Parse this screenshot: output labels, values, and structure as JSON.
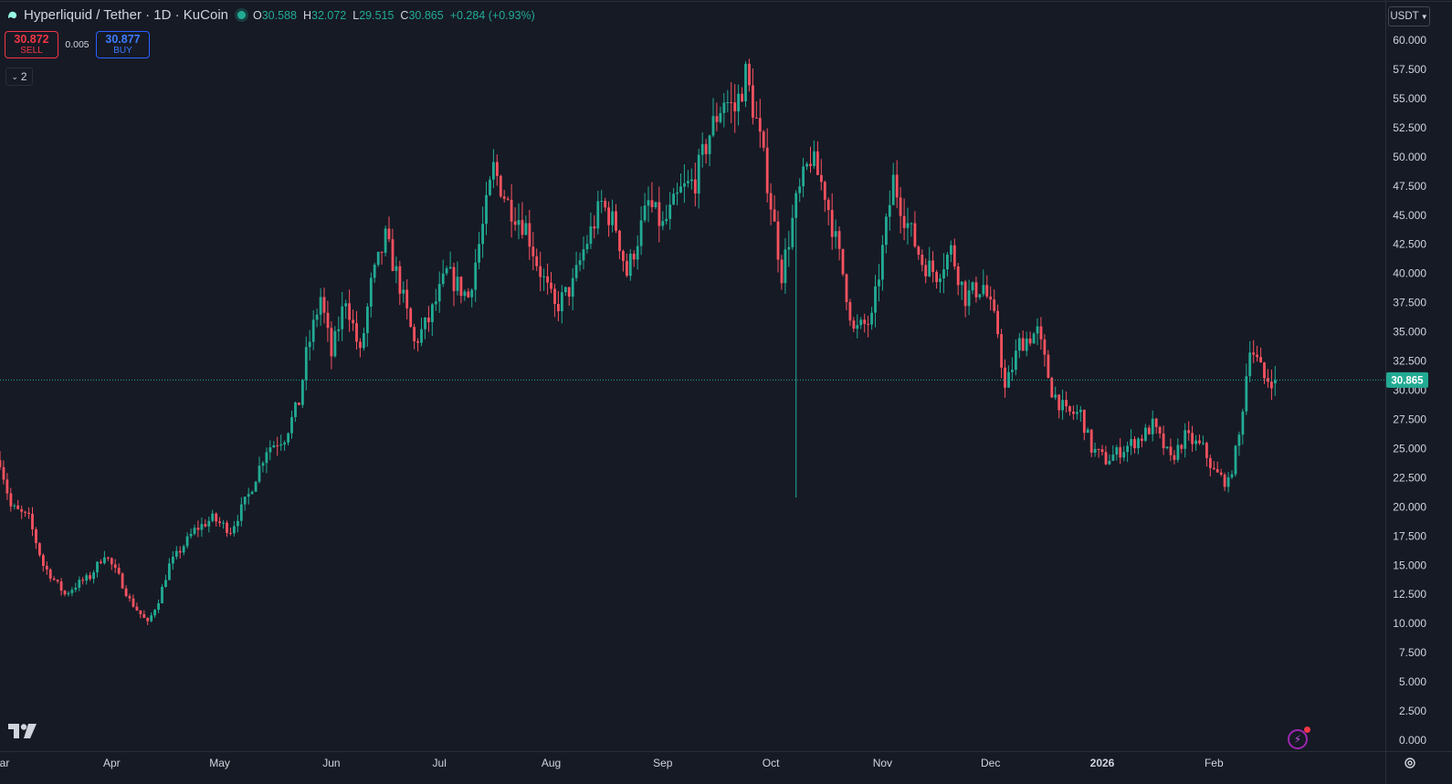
{
  "legend": {
    "title": "Hyperliquid / Tether · 1D · KuCoin",
    "open_label": "O",
    "open": "30.588",
    "high_label": "H",
    "high": "32.072",
    "low_label": "L",
    "low": "29.515",
    "close_label": "C",
    "close": "30.865",
    "change": "+0.284 (+0.93%)"
  },
  "trade": {
    "sell_price": "30.872",
    "sell_label": "SELL",
    "spread": "0.005",
    "buy_price": "30.877",
    "buy_label": "BUY"
  },
  "indicators_toggle": {
    "count": "2",
    "icon": "chevron-down-icon"
  },
  "currency": {
    "label": "USDT"
  },
  "last_price_label": "30.865",
  "colors": {
    "background": "#161a25",
    "up": "#22ab94",
    "down": "#f7525f",
    "text": "#d1d4dc",
    "grid_border": "#2a2e39"
  },
  "chart_data": {
    "type": "candlestick",
    "symbol": "Hyperliquid / Tether",
    "interval": "1D",
    "exchange": "KuCoin",
    "ylim": [
      0,
      60
    ],
    "y_ticks": [
      "60.000",
      "57.500",
      "55.000",
      "52.500",
      "50.000",
      "47.500",
      "45.000",
      "42.500",
      "40.000",
      "37.500",
      "35.000",
      "32.500",
      "30.000",
      "27.500",
      "25.000",
      "22.500",
      "20.000",
      "17.500",
      "15.000",
      "12.500",
      "10.000",
      "7.500",
      "5.000",
      "2.500",
      "0.000"
    ],
    "x_ticks": [
      {
        "label": "Mar",
        "day": 1
      },
      {
        "label": "Apr",
        "day": 32
      },
      {
        "label": "May",
        "day": 62
      },
      {
        "label": "Jun",
        "day": 93
      },
      {
        "label": "Jul",
        "day": 123
      },
      {
        "label": "Aug",
        "day": 154
      },
      {
        "label": "Sep",
        "day": 185
      },
      {
        "label": "Oct",
        "day": 215
      },
      {
        "label": "Nov",
        "day": 246
      },
      {
        "label": "Dec",
        "day": 276
      },
      {
        "label": "2026",
        "day": 307
      },
      {
        "label": "Feb",
        "day": 338
      }
    ],
    "days_range": [
      1,
      361
    ],
    "last_price": 30.865,
    "close_path": [
      [
        1,
        24
      ],
      [
        4,
        20
      ],
      [
        9,
        19
      ],
      [
        13,
        15
      ],
      [
        19,
        12.5
      ],
      [
        23,
        13.5
      ],
      [
        26,
        14
      ],
      [
        30,
        16
      ],
      [
        34,
        14
      ],
      [
        37,
        12
      ],
      [
        42,
        10
      ],
      [
        45,
        12
      ],
      [
        48,
        15
      ],
      [
        55,
        18
      ],
      [
        60,
        19
      ],
      [
        65,
        18
      ],
      [
        70,
        21
      ],
      [
        75,
        25
      ],
      [
        80,
        26
      ],
      [
        84,
        29
      ],
      [
        86,
        33
      ],
      [
        90,
        38
      ],
      [
        93,
        33
      ],
      [
        97,
        38
      ],
      [
        101,
        33
      ],
      [
        104,
        39
      ],
      [
        108,
        43
      ],
      [
        112,
        39
      ],
      [
        116,
        34
      ],
      [
        120,
        36
      ],
      [
        125,
        40
      ],
      [
        131,
        38
      ],
      [
        135,
        44
      ],
      [
        138,
        49
      ],
      [
        142,
        46
      ],
      [
        147,
        44
      ],
      [
        150,
        41
      ],
      [
        155,
        37
      ],
      [
        160,
        39
      ],
      [
        163,
        42
      ],
      [
        168,
        46
      ],
      [
        172,
        44
      ],
      [
        175,
        40
      ],
      [
        181,
        46
      ],
      [
        185,
        44
      ],
      [
        190,
        47
      ],
      [
        194,
        48
      ],
      [
        198,
        52
      ],
      [
        202,
        55
      ],
      [
        205,
        54
      ],
      [
        208,
        57
      ],
      [
        211,
        53
      ],
      [
        214,
        48
      ],
      [
        218,
        40
      ],
      [
        222,
        46
      ],
      [
        226,
        50
      ],
      [
        230,
        47
      ],
      [
        235,
        40
      ],
      [
        238,
        35
      ],
      [
        243,
        36
      ],
      [
        245,
        40
      ],
      [
        249,
        48
      ],
      [
        252,
        45
      ],
      [
        257,
        41
      ],
      [
        261,
        40
      ],
      [
        265,
        42
      ],
      [
        269,
        38
      ],
      [
        274,
        39
      ],
      [
        278,
        35
      ],
      [
        280,
        30
      ],
      [
        284,
        34
      ],
      [
        289,
        35
      ],
      [
        293,
        30
      ],
      [
        297,
        28
      ],
      [
        301,
        28
      ],
      [
        304,
        25
      ],
      [
        308,
        24
      ],
      [
        313,
        25
      ],
      [
        318,
        26
      ],
      [
        321,
        27
      ],
      [
        326,
        24
      ],
      [
        330,
        26
      ],
      [
        335,
        25
      ],
      [
        338,
        23
      ],
      [
        342,
        22
      ],
      [
        345,
        26
      ],
      [
        348,
        34
      ],
      [
        352,
        31
      ],
      [
        355,
        30.865
      ]
    ]
  },
  "branding": {
    "logo": "tradingview-logo-icon",
    "bolt": "lightning-icon",
    "settings": "settings-icon"
  }
}
